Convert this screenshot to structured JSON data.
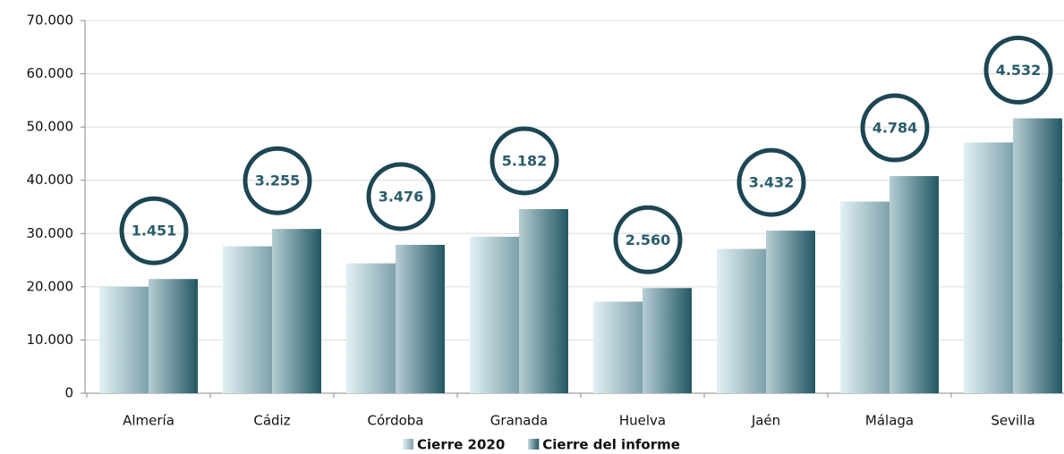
{
  "chart_data": {
    "type": "bar",
    "categories": [
      "Almería",
      "Cádiz",
      "Córdoba",
      "Granada",
      "Huelva",
      "Jaén",
      "Málaga",
      "Sevilla"
    ],
    "series": [
      {
        "name": "Cierre 2020",
        "color": "#a9d6e2",
        "values": [
          20000,
          27600,
          24400,
          29400,
          17200,
          27100,
          36000,
          47100
        ]
      },
      {
        "name": "Cierre del informe",
        "color": "#2d7484",
        "values": [
          21451,
          30855,
          27876,
          34582,
          19760,
          30532,
          40784,
          51632
        ]
      }
    ],
    "differences": {
      "values": [
        1451,
        3255,
        3476,
        5182,
        2560,
        3432,
        4784,
        4532
      ],
      "value_labels": [
        "1.451",
        "3.255",
        "3.476",
        "5.182",
        "2.560",
        "3.432",
        "4.784",
        "4.532"
      ]
    },
    "ylim": [
      0,
      70000
    ],
    "yticks": [
      0,
      {
        "value": 10000,
        "label": "10.000"
      },
      {
        "value": 20000,
        "label": "20.000"
      },
      {
        "value": 30000,
        "label": "30.000"
      },
      {
        "value": 40000,
        "label": "40.000"
      },
      {
        "value": 50000,
        "label": "50.000"
      },
      {
        "value": 60000,
        "label": "60.000"
      },
      {
        "value": 70000,
        "label": "70.000"
      }
    ],
    "grid": true,
    "legend": "bottom"
  }
}
